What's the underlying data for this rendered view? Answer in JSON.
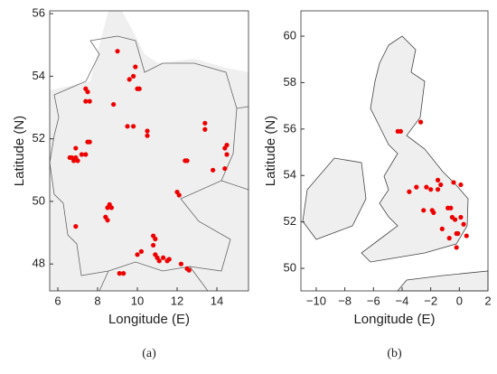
{
  "chart_data": [
    {
      "type": "scatter",
      "x_label": "Longitude (E)",
      "y_label": "Latitude (N)",
      "panel_label": "(a)",
      "color": "#ee0000",
      "xlim": [
        5.59,
        15.59
      ],
      "ylim": [
        47.14,
        56.09
      ],
      "xticks": [
        6,
        8,
        10,
        12,
        14
      ],
      "yticks": [
        48,
        50,
        52,
        54,
        56
      ],
      "x": [
        9.0,
        9.9,
        9.6,
        9.8,
        10.0,
        10.1,
        7.4,
        7.5,
        7.6,
        7.4,
        8.8,
        9.5,
        9.8,
        10.5,
        10.5,
        13.4,
        13.4,
        14.5,
        14.4,
        14.5,
        6.7,
        6.8,
        6.9,
        7.0,
        6.6,
        7.2,
        7.4,
        6.9,
        7.5,
        7.6,
        12.4,
        12.5,
        13.8,
        14.4,
        12.0,
        12.1,
        8.6,
        8.7,
        8.5,
        8.4,
        8.5,
        6.9,
        10.8,
        10.9,
        10.8,
        10.2,
        10.0,
        10.9,
        11.0,
        11.3,
        11.5,
        11.6,
        12.2,
        12.5,
        12.6,
        9.1,
        9.3,
        11.1
      ],
      "values": [
        54.8,
        54.3,
        53.9,
        54.0,
        53.6,
        53.6,
        53.6,
        53.5,
        53.2,
        53.2,
        53.1,
        52.4,
        52.4,
        52.25,
        52.1,
        52.5,
        52.3,
        51.8,
        51.7,
        51.5,
        51.4,
        51.3,
        51.4,
        51.3,
        51.4,
        51.5,
        51.5,
        51.7,
        51.9,
        51.9,
        51.3,
        51.3,
        51.0,
        51.05,
        50.3,
        50.2,
        49.9,
        49.8,
        49.8,
        49.5,
        49.4,
        49.2,
        48.9,
        48.8,
        48.6,
        48.4,
        48.3,
        48.3,
        48.2,
        48.2,
        48.1,
        48.15,
        48.0,
        47.85,
        47.8,
        47.7,
        47.7,
        48.1
      ]
    },
    {
      "type": "scatter",
      "x_label": "Longitude (E)",
      "y_label": "Latitude (N)",
      "panel_label": "(b)",
      "color": "#ee0000",
      "xlim": [
        -11.07,
        2
      ],
      "ylim": [
        49.03,
        61.09
      ],
      "xticks": [
        {
          "value": -10,
          "label": "−10"
        },
        {
          "value": -8,
          "label": "−8"
        },
        {
          "value": -6,
          "label": "−6"
        },
        {
          "value": -4,
          "label": "−4"
        },
        {
          "value": -2,
          "label": "−2"
        },
        0,
        2
      ],
      "yticks": [
        50,
        52,
        54,
        56,
        58,
        60
      ],
      "x": [
        -2.7,
        -4.3,
        -4.1,
        -3.0,
        -2.3,
        -2.0,
        -1.5,
        -1.5,
        -1.3,
        -0.4,
        0.1,
        -2.5,
        -1.9,
        -1.8,
        -0.8,
        -0.5,
        -0.3,
        0.1,
        0.3,
        -0.2,
        -0.1,
        -0.7,
        -1.2,
        -0.2,
        0.5,
        -3.5,
        -0.6
      ],
      "values": [
        56.3,
        55.9,
        55.9,
        53.5,
        53.5,
        53.4,
        53.4,
        53.8,
        53.6,
        53.7,
        53.6,
        52.5,
        52.5,
        52.4,
        52.6,
        52.2,
        52.1,
        52.2,
        51.9,
        51.5,
        51.5,
        51.3,
        51.7,
        50.9,
        51.4,
        53.3,
        52.6
      ]
    }
  ]
}
